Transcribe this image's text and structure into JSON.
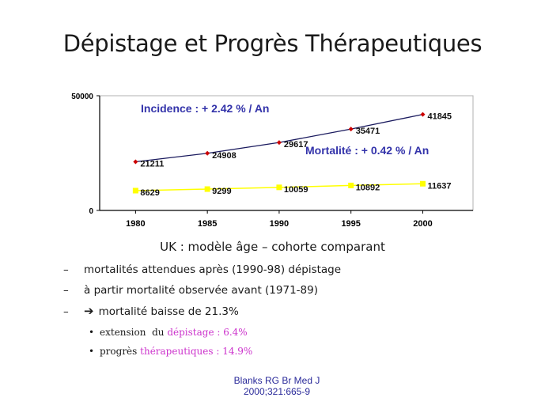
{
  "slide": {
    "title": "Dépistage et Progrès Thérapeutiques",
    "subtitle": "UK : modèle âge – cohorte comparant",
    "bullets": [
      {
        "marker": "–",
        "text": "mortalités attendues après (1990-98)  dépistage",
        "arrow": false
      },
      {
        "marker": "–",
        "text": "à partir mortalité observée avant (1971-89)",
        "arrow": false
      },
      {
        "marker": "–",
        "text": "mortalité baisse de 21.3%",
        "arrow": true
      }
    ],
    "sub_bullets": [
      {
        "prefix": "extension  du ",
        "highlight": "dépistage : 6.4%"
      },
      {
        "prefix": "progrès ",
        "highlight": "thérapeutiques : 14.9%"
      }
    ],
    "citation_line1": "Blanks RG Br Med J",
    "citation_line2": "2000;321:665-9"
  },
  "colors": {
    "incidence": "#cc0000",
    "incidence_line": "#1a1a5e",
    "mortalite": "#ffff00",
    "annotation": "#3333aa",
    "highlight": "#cc33cc"
  },
  "chart_data": {
    "type": "line",
    "x": [
      1980,
      1985,
      1990,
      1995,
      2000
    ],
    "ylim": [
      0,
      50000
    ],
    "ytick_labels": [
      "0",
      "50000"
    ],
    "xtick_labels": [
      "1980",
      "1985",
      "1990",
      "1995",
      "2000"
    ],
    "grid": false,
    "series": [
      {
        "key": "incidence",
        "values": [
          21211,
          24908,
          29617,
          35471,
          41845
        ],
        "labels": [
          "21211",
          "24908",
          "29617",
          "35471",
          "41845"
        ]
      },
      {
        "key": "mortalite",
        "values": [
          8629,
          9299,
          10059,
          10892,
          11637
        ],
        "labels": [
          "8629",
          "9299",
          "10059",
          "10892",
          "11637"
        ]
      }
    ],
    "annotations": [
      {
        "key": "incidence",
        "text": "Incidence : + 2.42 %  / An"
      },
      {
        "key": "mortalite",
        "text": "Mortalité : + 0.42 %  / An"
      }
    ]
  }
}
